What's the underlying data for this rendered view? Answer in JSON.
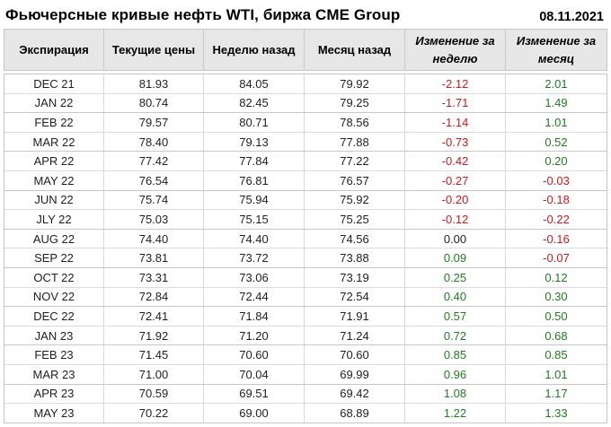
{
  "title": "Фьючерсные кривые нефть WTI, биржа CME Group",
  "date": "08.11.2021",
  "colors": {
    "positive": "#1e7e1e",
    "negative": "#cc1a1a",
    "neutral": "#1f1f1f",
    "header_bg": "#e7e7e7",
    "border": "#c6c6c6"
  },
  "chart_data": {
    "type": "table",
    "title": "Фьючерсные кривые нефть WTI, биржа CME Group",
    "date_label": "08.11.2021",
    "columns": [
      "Экспирация",
      "Текущие цены",
      "Неделю назад",
      "Месяц назад",
      "Изменение за неделю",
      "Изменение за месяц"
    ],
    "rows": [
      [
        "DEC 21",
        "81.93",
        "84.05",
        "79.92",
        "-2.12",
        "2.01"
      ],
      [
        "JAN 22",
        "80.74",
        "82.45",
        "79.25",
        "-1.71",
        "1.49"
      ],
      [
        "FEB 22",
        "79.57",
        "80.71",
        "78.56",
        "-1.14",
        "1.01"
      ],
      [
        "MAR 22",
        "78.40",
        "79.13",
        "77.88",
        "-0.73",
        "0.52"
      ],
      [
        "APR 22",
        "77.42",
        "77.84",
        "77.22",
        "-0.42",
        "0.20"
      ],
      [
        "MAY 22",
        "76.54",
        "76.81",
        "76.57",
        "-0.27",
        "-0.03"
      ],
      [
        "JUN 22",
        "75.74",
        "75.94",
        "75.92",
        "-0.20",
        "-0.18"
      ],
      [
        "JLY 22",
        "75.03",
        "75.15",
        "75.25",
        "-0.12",
        "-0.22"
      ],
      [
        "AUG 22",
        "74.40",
        "74.40",
        "74.56",
        "0.00",
        "-0.16"
      ],
      [
        "SEP 22",
        "73.81",
        "73.72",
        "73.88",
        "0.09",
        "-0.07"
      ],
      [
        "OCT 22",
        "73.31",
        "73.06",
        "73.19",
        "0.25",
        "0.12"
      ],
      [
        "NOV 22",
        "72.84",
        "72.44",
        "72.54",
        "0.40",
        "0.30"
      ],
      [
        "DEC 22",
        "72.41",
        "71.84",
        "71.91",
        "0.57",
        "0.50"
      ],
      [
        "JAN 23",
        "71.92",
        "71.20",
        "71.24",
        "0.72",
        "0.68"
      ],
      [
        "FEB 23",
        "71.45",
        "70.60",
        "70.60",
        "0.85",
        "0.85"
      ],
      [
        "MAR 23",
        "71.00",
        "70.04",
        "69.99",
        "0.96",
        "1.01"
      ],
      [
        "APR 23",
        "70.59",
        "69.51",
        "69.42",
        "1.08",
        "1.17"
      ],
      [
        "MAY 23",
        "70.22",
        "69.00",
        "68.89",
        "1.22",
        "1.33"
      ]
    ]
  }
}
